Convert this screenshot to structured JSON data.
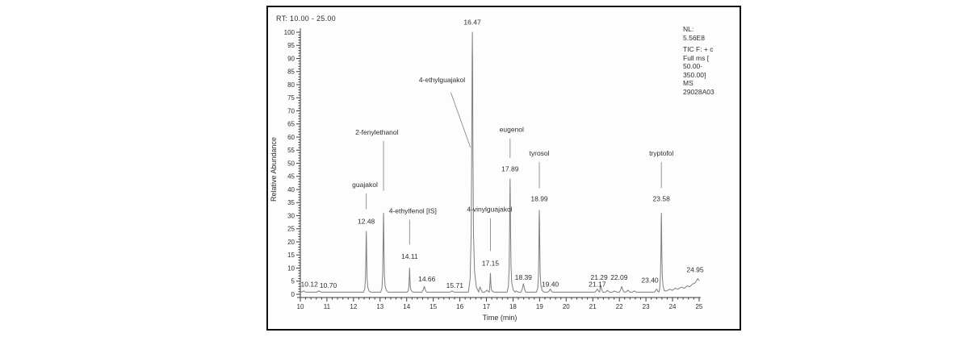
{
  "figure": {
    "header": "RT: 10.00 - 25.00",
    "info_lines": [
      "NL:",
      "5.56E8",
      "TIC F: + c",
      "Full ms [",
      "50.00-",
      "350.00]",
      "MS",
      "29028A03"
    ]
  },
  "chart_data": {
    "type": "line",
    "title": "RT: 10.00 - 25.00",
    "xlabel": "Time (min)",
    "ylabel": "Relative Abundance",
    "xlim": [
      10,
      25
    ],
    "ylim": [
      0,
      100
    ],
    "x_major_tick": 1,
    "x_minor_tick": 0.2,
    "y_major_tick": 5,
    "y_minor_tick": 1,
    "grid": false,
    "legend": "none",
    "baseline": 0.8,
    "peaks": [
      {
        "rt": 10.12,
        "height": 1.3,
        "rt_label": "10.12",
        "rtl_y": 3,
        "label_dx": 0.22
      },
      {
        "rt": 10.7,
        "height": 1.3,
        "rt_label": "10.70",
        "rtl_y": 2.5,
        "label_dx": 0.35
      },
      {
        "rt": 12.48,
        "height": 24,
        "name": "guajakol",
        "name_dx": -0.05,
        "name_y": 41,
        "leader": "vertical",
        "leader_bottom": 32.5,
        "rt_label": "12.48",
        "rtl_y": 27
      },
      {
        "rt": 13.13,
        "height": 31,
        "name": "2-fenylethanol",
        "name_dx": -0.25,
        "name_y": 61,
        "leader": "vertical",
        "leader_bottom": 39.5
      },
      {
        "rt": 14.11,
        "height": 10,
        "name": "4-ethylfenol [IS]",
        "name_dx": 0.12,
        "name_y": 31,
        "leader": "vertical",
        "leader_bottom": 19,
        "rt_label": "14.11",
        "rtl_y": 13.5
      },
      {
        "rt": 14.66,
        "height": 3,
        "rt_label": "14.66",
        "rtl_y": 5,
        "label_dx": 0.1
      },
      {
        "rt": 15.71,
        "height": 1.3,
        "rt_label": "15.71",
        "rtl_y": 2.5,
        "label_dx": 0.1
      },
      {
        "rt": 16.47,
        "height": 100,
        "name": "4-ethylguajakol",
        "name_x": 15.33,
        "name_y": 81,
        "leader": "diagonal",
        "diag": [
          15.66,
          77,
          16.4,
          56
        ],
        "rt_label": "16.47",
        "rtl_y": 103
      },
      {
        "rt": 17.15,
        "height": 8,
        "name": "4-vinylguajakol",
        "name_dx": -0.03,
        "name_y": 31.5,
        "leader": "vertical",
        "leader_bottom": 16.5,
        "rt_label": "17.15",
        "rtl_y": 11
      },
      {
        "rt": 17.89,
        "height": 44,
        "name": "eugenol",
        "name_dx": 0.06,
        "name_y": 62,
        "leader": "vertical",
        "leader_bottom": 52,
        "rt_label": "17.89",
        "rtl_y": 47
      },
      {
        "rt": 18.39,
        "height": 4,
        "rt_label": "18.39",
        "rtl_y": 5.5
      },
      {
        "rt": 18.99,
        "height": 32,
        "name": "tyrosol",
        "name_y": 53,
        "leader": "vertical",
        "leader_bottom": 40.5,
        "rt_label": "18.99",
        "rtl_y": 35.5
      },
      {
        "rt": 19.4,
        "height": 2,
        "rt_label": "19.40",
        "rtl_y": 3
      },
      {
        "rt": 21.17,
        "height": 2,
        "rt_label": "21.17",
        "rtl_y": 3
      },
      {
        "rt": 21.29,
        "height": 3.5,
        "rt_label": "21.29",
        "rtl_y": 5.5,
        "label_dx": -0.05
      },
      {
        "rt": 22.09,
        "height": 3,
        "rt_label": "22.09",
        "rtl_y": 5.5,
        "label_dx": -0.1
      },
      {
        "rt": 23.4,
        "height": 2,
        "rt_label": "23.40",
        "rtl_y": 4.5,
        "label_dx": -0.25
      },
      {
        "rt": 23.58,
        "height": 31,
        "name": "tryptofol",
        "name_y": 53,
        "leader": "vertical",
        "leader_bottom": 40.5,
        "rt_label": "23.58",
        "rtl_y": 35.5
      },
      {
        "rt": 24.95,
        "height": 6,
        "rt_label": "24.95",
        "rtl_y": 8.5,
        "label_dx": -0.1,
        "in_tail": true
      }
    ],
    "minor_bumps": [
      {
        "rt": 12.58,
        "height": 8
      },
      {
        "rt": 13.24,
        "height": 6
      },
      {
        "rt": 16.62,
        "height": 3.5
      },
      {
        "rt": 16.76,
        "height": 2.8
      },
      {
        "rt": 17.02,
        "height": 1.6
      },
      {
        "rt": 18.12,
        "height": 1.3
      },
      {
        "rt": 21.55,
        "height": 1.5
      },
      {
        "rt": 21.82,
        "height": 1.3
      },
      {
        "rt": 22.32,
        "height": 1.6
      },
      {
        "rt": 22.56,
        "height": 1.3
      }
    ],
    "tail_points": [
      [
        23.75,
        1.2
      ],
      [
        23.9,
        1.9
      ],
      [
        24.0,
        1.5
      ],
      [
        24.1,
        2.3
      ],
      [
        24.2,
        1.9
      ],
      [
        24.32,
        2.7
      ],
      [
        24.45,
        2.3
      ],
      [
        24.55,
        3.2
      ],
      [
        24.65,
        2.9
      ],
      [
        24.75,
        3.9
      ],
      [
        24.85,
        4.3
      ],
      [
        24.95,
        6.0
      ],
      [
        25.0,
        5.2
      ]
    ]
  },
  "colors": {
    "trace": "#7e7e7e",
    "text": "#2e2e2e",
    "axis": "#3c3c3c",
    "leader": "#8a8a8a",
    "border": "#101010"
  }
}
